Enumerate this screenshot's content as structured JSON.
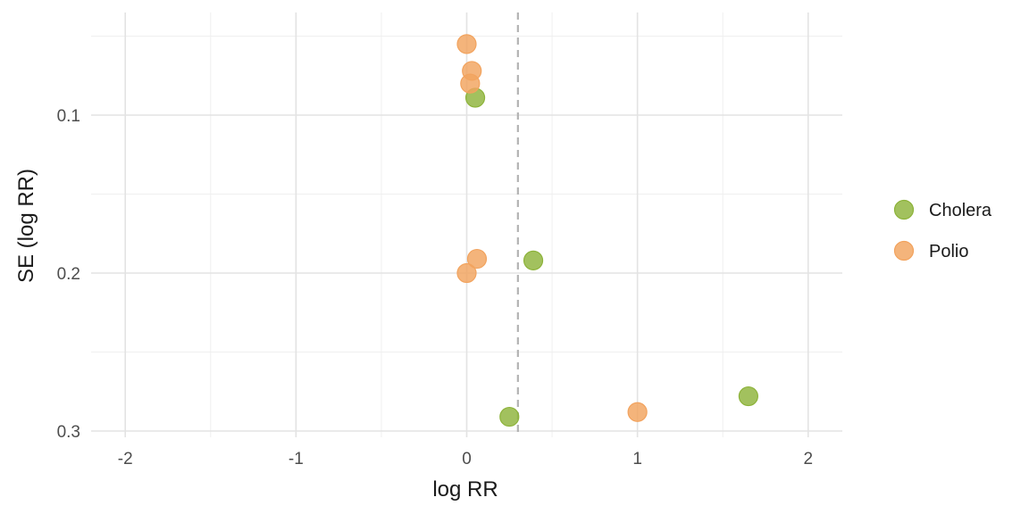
{
  "chart_data": {
    "type": "scatter",
    "title": "",
    "xlabel": "log RR",
    "ylabel": "SE (log RR)",
    "xlim": [
      -2.2,
      2.2
    ],
    "ylim": [
      0.3,
      0.05
    ],
    "y_reversed": true,
    "x_ticks": [
      -2,
      -1,
      0,
      1,
      2
    ],
    "x_tick_labels": [
      "-2",
      "-1",
      "0",
      "1",
      "2"
    ],
    "y_ticks": [
      0.1,
      0.2,
      0.3
    ],
    "y_tick_labels": [
      "0.1",
      "0.2",
      "0.3"
    ],
    "reference_line_x": 0.3,
    "grid": true,
    "legend_position": "right",
    "series": [
      {
        "name": "Cholera",
        "color": "#8db33a",
        "points": [
          {
            "x": 0.05,
            "y": 0.089
          },
          {
            "x": 0.39,
            "y": 0.192
          },
          {
            "x": 0.25,
            "y": 0.291
          },
          {
            "x": 1.65,
            "y": 0.278
          }
        ]
      },
      {
        "name": "Polio",
        "color": "#f2a35e",
        "points": [
          {
            "x": 0.0,
            "y": 0.055
          },
          {
            "x": 0.03,
            "y": 0.072
          },
          {
            "x": 0.02,
            "y": 0.08
          },
          {
            "x": 0.06,
            "y": 0.191
          },
          {
            "x": 0.0,
            "y": 0.2
          },
          {
            "x": 1.0,
            "y": 0.288
          }
        ]
      }
    ]
  }
}
